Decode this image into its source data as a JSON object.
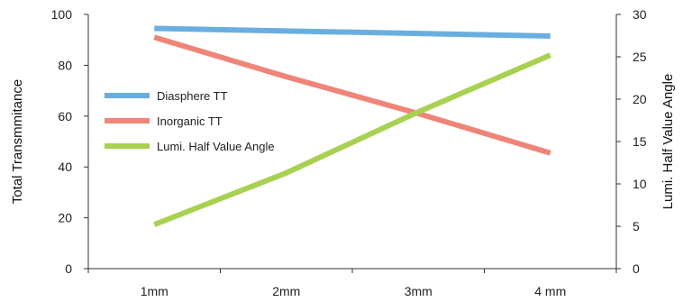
{
  "chart_data": {
    "type": "line",
    "categories": [
      "1mm",
      "2mm",
      "3mm",
      "4 mm"
    ],
    "ylabel": "Total Transmmitance",
    "y2label": "Lumi. Half Value Angle",
    "ylim": [
      0,
      100
    ],
    "y2lim": [
      0,
      30
    ],
    "yticks": [
      "0",
      "20",
      "40",
      "60",
      "80",
      "100"
    ],
    "y2ticks": [
      "0",
      "5",
      "10",
      "15",
      "20",
      "25",
      "30"
    ],
    "grid": false,
    "legend_position": "left",
    "series": [
      {
        "name": "Diasphere TT",
        "axis": "left",
        "color": "#6aaee0",
        "values": [
          94.5,
          93.5,
          92.5,
          91.5
        ]
      },
      {
        "name": "Inorganic TT",
        "axis": "left",
        "color": "#ef8579",
        "values": [
          91,
          75.5,
          61,
          45.5
        ]
      },
      {
        "name": "Lumi. Half Value Angle",
        "axis": "right",
        "color": "#a8d151",
        "values": [
          5.2,
          11.3,
          18.5,
          25.2
        ]
      }
    ]
  }
}
